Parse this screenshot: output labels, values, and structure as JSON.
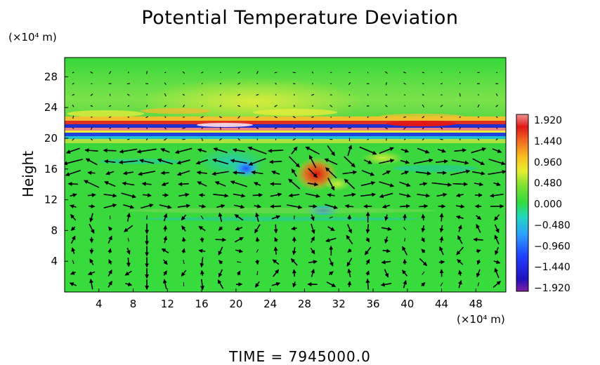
{
  "chart_data": {
    "type": "heatmap",
    "title": "Potential Temperature Deviation",
    "ylabel": "Height",
    "y_unit": "(×10⁴ m)",
    "x_unit": "(×10⁴ m)",
    "xlim": [
      0,
      51.5
    ],
    "ylim": [
      0,
      30.5
    ],
    "x_ticks": [
      4,
      8,
      12,
      16,
      20,
      24,
      28,
      32,
      36,
      40,
      44,
      48
    ],
    "y_ticks": [
      4,
      8,
      12,
      16,
      20,
      24,
      28
    ],
    "colorbar": {
      "min": -1.92,
      "max": 1.92,
      "tick_labels": [
        "1.920",
        "1.440",
        "0.960",
        "0.480",
        "0.000",
        "−0.480",
        "−0.960",
        "−1.440",
        "−1.920"
      ]
    },
    "overlay": "velocity vectors (arrows)",
    "features": [
      {
        "kind": "horizontal band",
        "y": 20.5,
        "description": "strong alternating positive/negative layer"
      },
      {
        "kind": "positive anomaly",
        "x": 29,
        "y": 15,
        "value": 1.9
      },
      {
        "kind": "negative anomaly",
        "x": 21,
        "y": 15,
        "value": -1.0
      },
      {
        "kind": "negative anomaly",
        "x": 30,
        "y": 10.5,
        "value": -0.9
      }
    ],
    "grid": false
  },
  "footer": {
    "time_text": "TIME  =  7945000.0"
  },
  "colors": {
    "background_field": "#3ddf40",
    "text": "#000000"
  }
}
